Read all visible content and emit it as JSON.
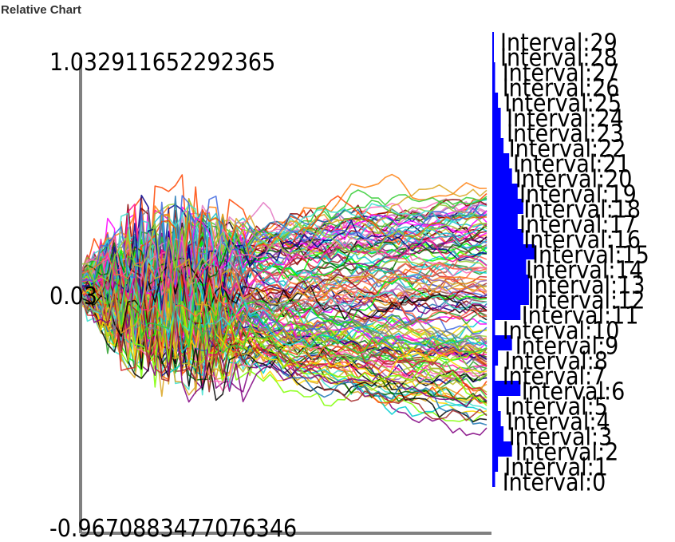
{
  "page": {
    "title": "Relative Chart"
  },
  "chart_data": [
    {
      "type": "line",
      "title": "",
      "xlabel": "",
      "ylabel": "",
      "ylim": [
        -0.9670883477076346,
        1.032911652292365
      ],
      "y_tick_labels": [
        "1.032911652292365",
        "0.03",
        "-0.9670883477076346"
      ],
      "y_tick_values": [
        1.032911652292365,
        0.03,
        -0.9670883477076346
      ],
      "num_series": 150,
      "series_start": 0.06,
      "series_end_range": [
        -0.53,
        0.46
      ],
      "grid": false,
      "legend": "none"
    },
    {
      "type": "bar",
      "orientation": "horizontal",
      "categories": [
        "Interval:0",
        "Interval:1",
        "Interval:2",
        "Interval:3",
        "Interval:4",
        "Interval:5",
        "Interval:6",
        "Interval:7",
        "Interval:8",
        "Interval:9",
        "Interval:10",
        "Interval:11",
        "Interval:12",
        "Interval:13",
        "Interval:14",
        "Interval:15",
        "Interval:16",
        "Interval:17",
        "Interval:18",
        "Interval:19",
        "Interval:20",
        "Interval:21",
        "Interval:22",
        "Interval:23",
        "Interval:24",
        "Interval:25",
        "Interval:26",
        "Interval:27",
        "Interval:28",
        "Interval:29"
      ],
      "values": [
        1,
        2,
        7,
        4,
        3,
        2,
        10,
        1,
        2,
        7,
        1,
        10,
        13,
        13,
        12,
        15,
        11,
        9,
        11,
        9,
        7,
        6,
        4,
        3,
        3,
        2,
        1,
        1,
        0,
        0
      ],
      "colors": {
        "bar": "#0000ff"
      }
    }
  ],
  "colors": {
    "axis": "#808080",
    "text": "#000000",
    "palette": [
      "#1f77b4",
      "#ff7f0e",
      "#2ca02c",
      "#d62728",
      "#9467bd",
      "#8c564b",
      "#e377c2",
      "#17becf",
      "#bcbd22",
      "#00ff00",
      "#ff00ff",
      "#00ced1",
      "#ff4500",
      "#8b0000",
      "#006400",
      "#00008b",
      "#ffd700",
      "#800080",
      "#ff69b4",
      "#7fff00",
      "#40e0d0",
      "#a52a2a",
      "#000000",
      "#808080",
      "#ff1493",
      "#32cd32",
      "#4169e1",
      "#daa520",
      "#ff6347",
      "#9acd32"
    ]
  }
}
